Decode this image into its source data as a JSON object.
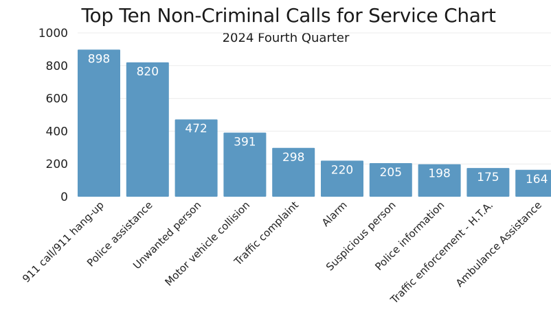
{
  "chart_data": {
    "type": "bar",
    "title": "Top Ten Non-Criminal Calls for Service Chart",
    "subtitle": "2024 Fourth Quarter",
    "xlabel": "",
    "ylabel": "",
    "ylim": [
      0,
      1000
    ],
    "yticks": [
      0,
      200,
      400,
      600,
      800,
      1000
    ],
    "categories": [
      "911 call/911 hang-up",
      "Police assistance",
      "Unwanted person",
      "Motor vehicle collision",
      "Traffic complaint",
      "Alarm",
      "Suspicious person",
      "Police information",
      "Traffic enforcement - H.T.A.",
      "Ambulance Assistance"
    ],
    "values": [
      898,
      820,
      472,
      391,
      298,
      220,
      205,
      198,
      175,
      164
    ],
    "bar_color": "#5b98c2",
    "grid": true,
    "legend": "none"
  }
}
